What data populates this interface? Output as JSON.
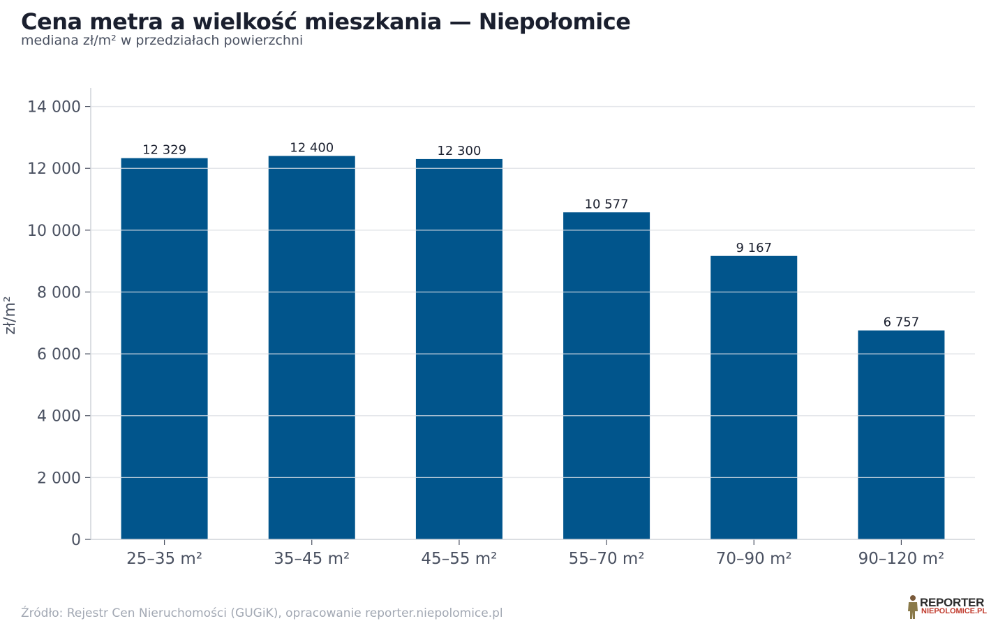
{
  "header": {
    "title": "Cena metra a wielkość mieszkania — Niepołomice",
    "subtitle": "mediana zł/m² w przedziałach powierzchni"
  },
  "footer": {
    "source": "Źródło: Rejestr Cen Nieruchomości (GUGiK), opracowanie reporter.niepolomice.pl"
  },
  "logo": {
    "line1": "REPORTER",
    "line2": "NIEPOLOMICE.PL"
  },
  "colors": {
    "bar": "#01558c",
    "grid": "#e4e6ea",
    "axis": "#cfd3d9"
  },
  "chart_data": {
    "type": "bar",
    "categories": [
      "25–35 m²",
      "35–45 m²",
      "45–55 m²",
      "55–70 m²",
      "70–90 m²",
      "90–120 m²"
    ],
    "values": [
      12329,
      12400,
      12300,
      10577,
      9167,
      6757
    ],
    "value_labels": [
      "12 329",
      "12 400",
      "12 300",
      "10 577",
      "9 167",
      "6 757"
    ],
    "ylabel": "zł/m²",
    "xlabel": "",
    "ylim": [
      0,
      14600
    ],
    "yticks": [
      0,
      2000,
      4000,
      6000,
      8000,
      10000,
      12000,
      14000
    ],
    "ytick_labels": [
      "0",
      "2 000",
      "4 000",
      "6 000",
      "8 000",
      "10 000",
      "12 000",
      "14 000"
    ],
    "grid": true
  }
}
